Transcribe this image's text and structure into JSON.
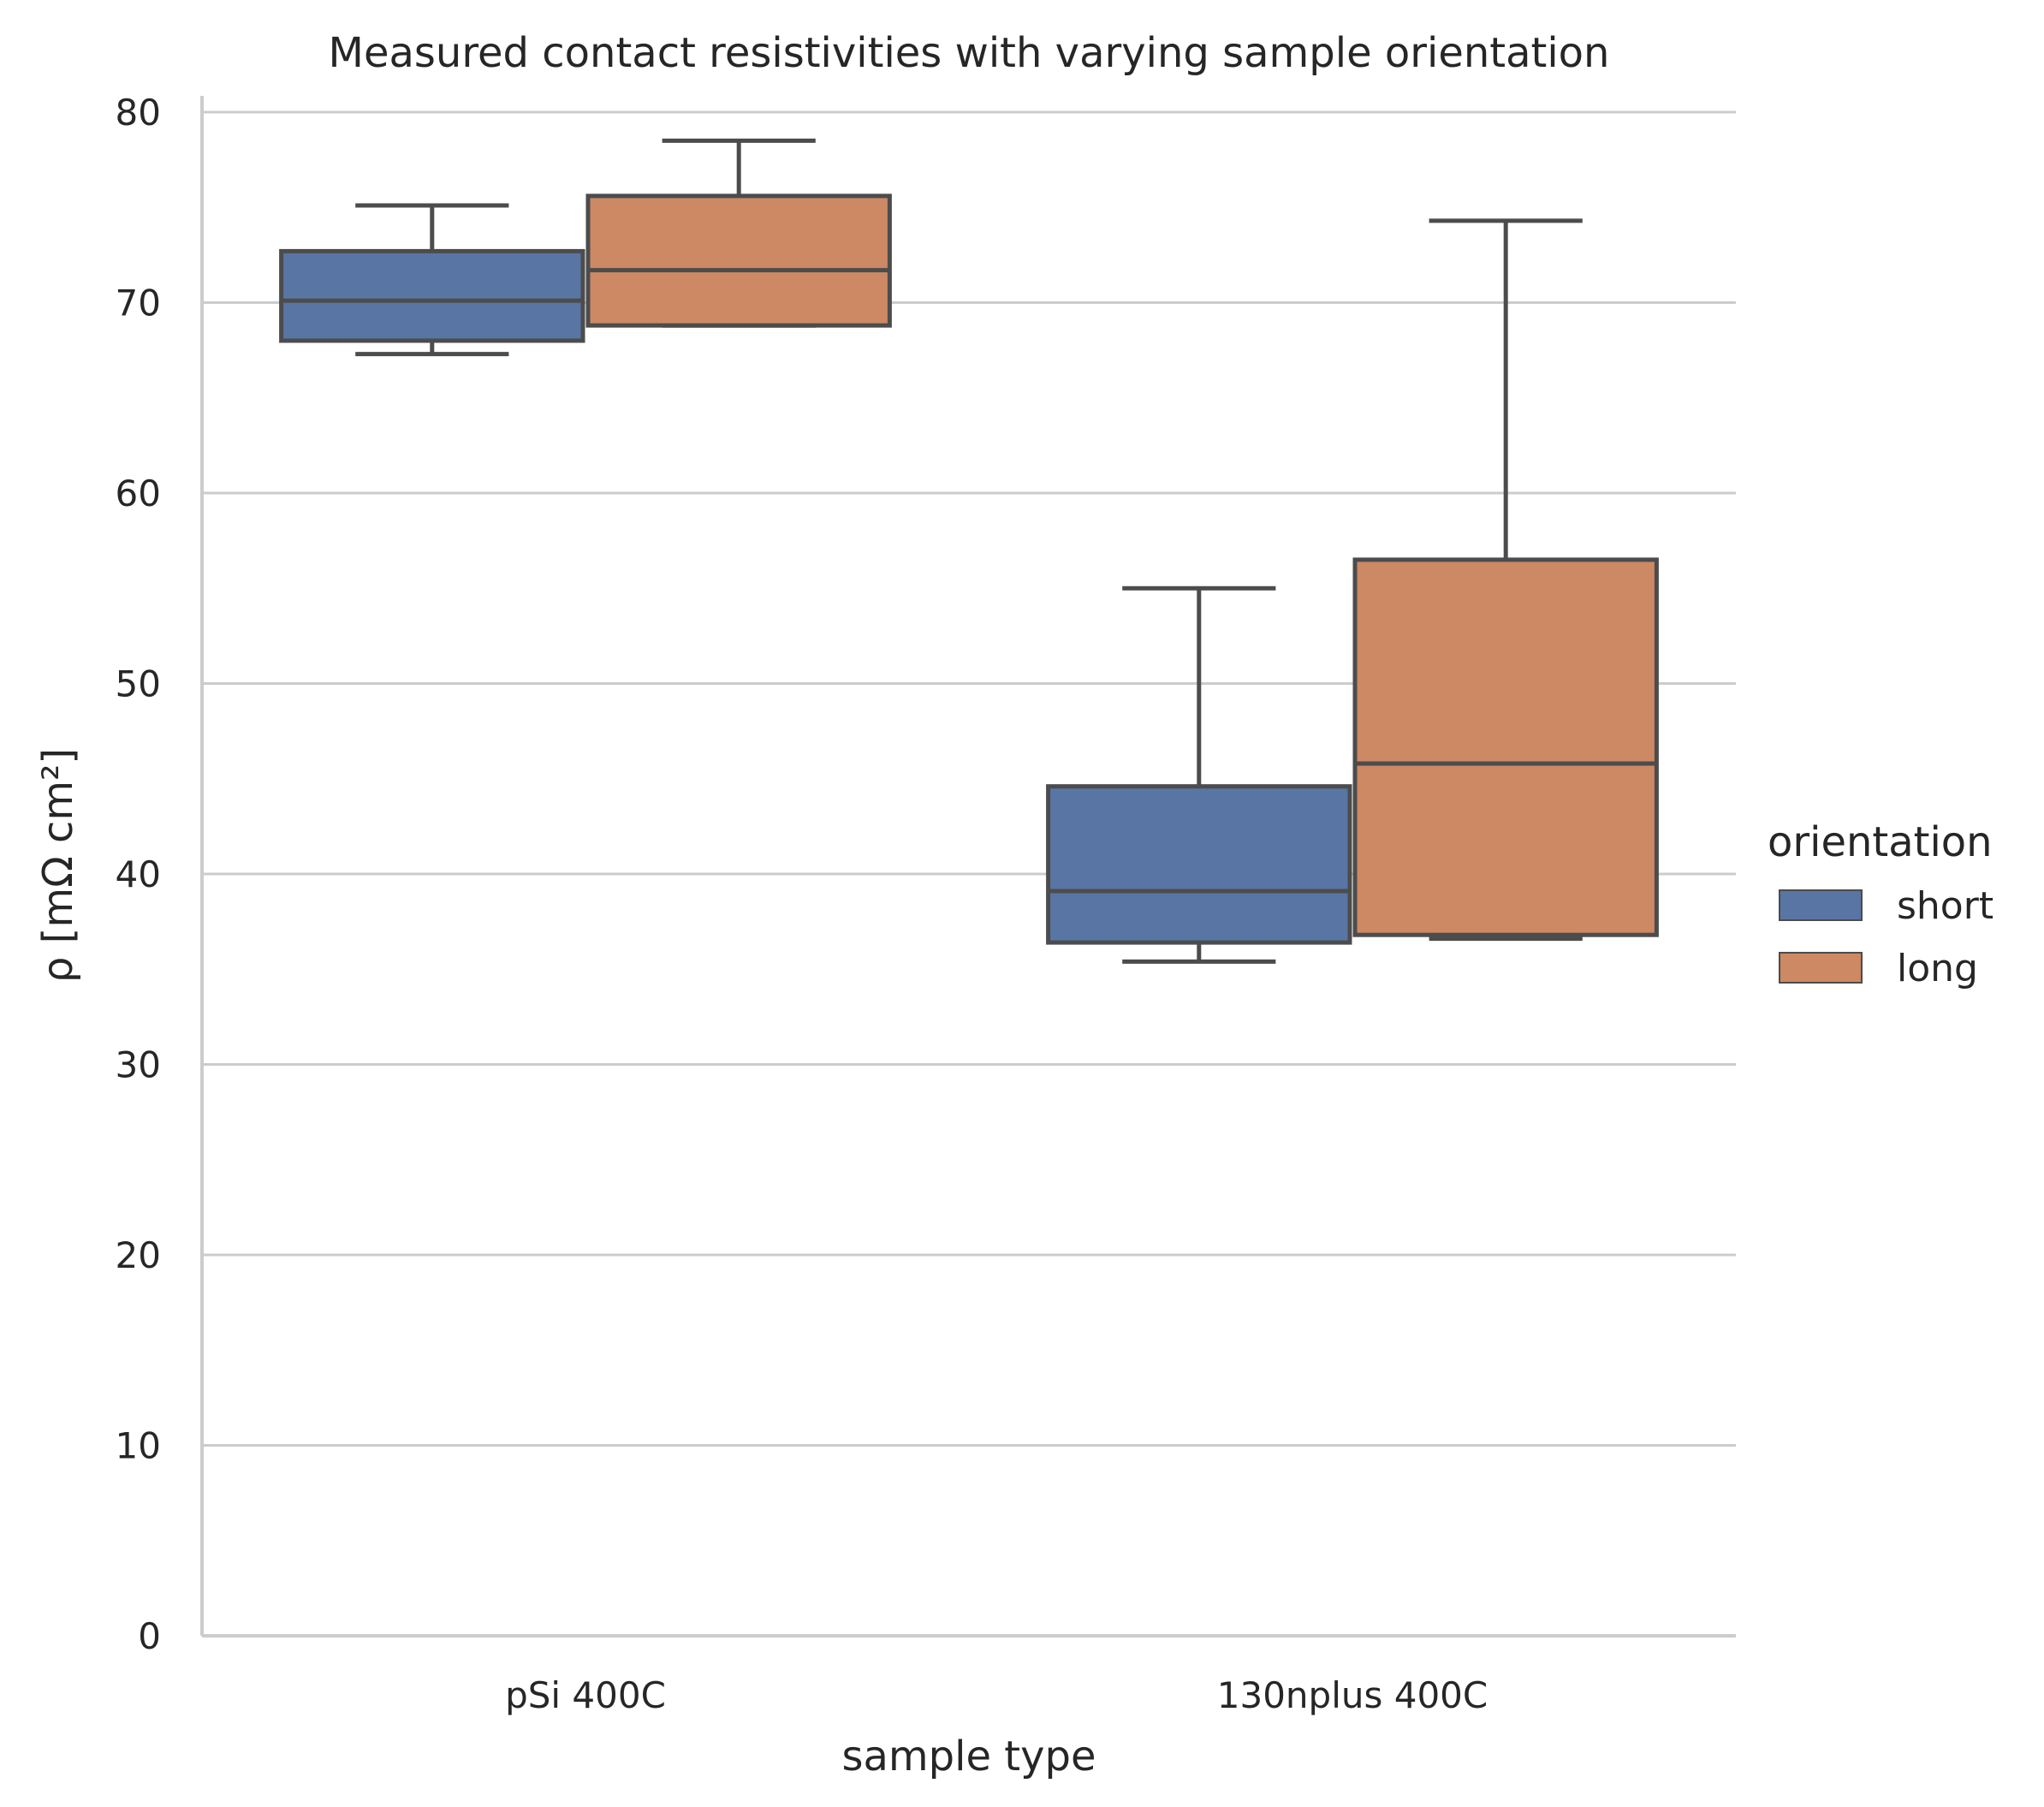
{
  "chart_data": {
    "type": "box",
    "title": "Measured contact resistivities with varying sample orientation",
    "xlabel": "sample type",
    "ylabel": "ρ [mΩ cm²]",
    "ylim": [
      0,
      80
    ],
    "yticks": [
      0,
      10,
      20,
      30,
      40,
      50,
      60,
      70,
      80
    ],
    "grid": "horizontal",
    "categories": [
      "pSi 400C",
      "130nplus 400C"
    ],
    "legend": {
      "title": "orientation",
      "placement": "right"
    },
    "colors": {
      "short": "#5875a4",
      "long": "#cc8963",
      "outline": "#4c4c4c",
      "grid": "#cccccc",
      "axis": "#cccccc"
    },
    "series": [
      {
        "name": "short",
        "color": "#5875a4",
        "boxes": [
          {
            "category": "pSi 400C",
            "whislo": 67.3,
            "q1": 68.0,
            "med": 70.1,
            "q3": 72.7,
            "whishi": 75.1
          },
          {
            "category": "130nplus 400C",
            "whislo": 35.4,
            "q1": 36.4,
            "med": 39.1,
            "q3": 44.6,
            "whishi": 55.0
          }
        ]
      },
      {
        "name": "long",
        "color": "#cc8963",
        "boxes": [
          {
            "category": "pSi 400C",
            "whislo": 68.8,
            "q1": 68.8,
            "med": 71.7,
            "q3": 75.6,
            "whishi": 78.5
          },
          {
            "category": "130nplus 400C",
            "whislo": 36.6,
            "q1": 36.8,
            "med": 45.8,
            "q3": 56.5,
            "whishi": 74.3
          }
        ]
      }
    ]
  }
}
